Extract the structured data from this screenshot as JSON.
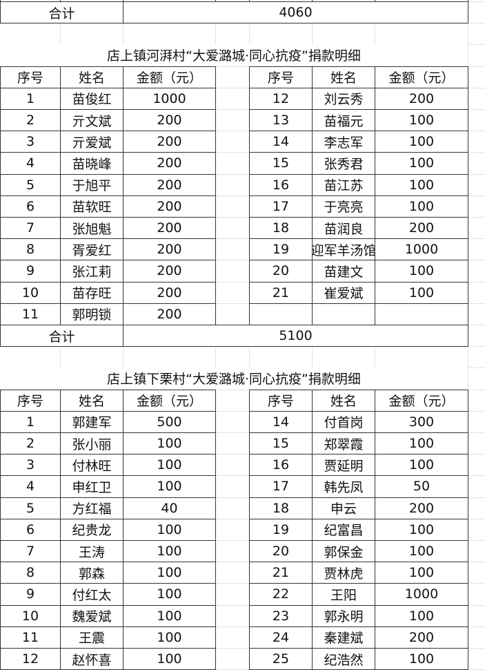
{
  "top_total": {
    "label": "合计",
    "value": "4060"
  },
  "sections": [
    {
      "title": "店上镇河湃村“大爱潞城·同心抗疫”捐款明细",
      "headers": [
        "序号",
        "姓名",
        "金额（元）"
      ],
      "left": [
        [
          "1",
          "苗俊红",
          "1000"
        ],
        [
          "2",
          "亓文斌",
          "200"
        ],
        [
          "3",
          "亓爱斌",
          "200"
        ],
        [
          "4",
          "苗晓峰",
          "200"
        ],
        [
          "5",
          "于旭平",
          "200"
        ],
        [
          "6",
          "苗软旺",
          "200"
        ],
        [
          "7",
          "张旭魁",
          "200"
        ],
        [
          "8",
          "胥爱红",
          "200"
        ],
        [
          "9",
          "张江莉",
          "200"
        ],
        [
          "10",
          "苗存旺",
          "200"
        ],
        [
          "11",
          "郭明锁",
          "200"
        ]
      ],
      "right": [
        [
          "12",
          "刘云秀",
          "200"
        ],
        [
          "13",
          "苗福元",
          "100"
        ],
        [
          "14",
          "李志军",
          "100"
        ],
        [
          "15",
          "张秀君",
          "100"
        ],
        [
          "16",
          "苗江苏",
          "100"
        ],
        [
          "17",
          "于亮亮",
          "100"
        ],
        [
          "18",
          "苗润良",
          "200"
        ],
        [
          "19",
          "迎军羊汤馆",
          "1000"
        ],
        [
          "20",
          "苗建文",
          "100"
        ],
        [
          "21",
          "崔爱斌",
          "100"
        ],
        [
          "",
          "",
          ""
        ]
      ],
      "total": {
        "label": "合计",
        "value": "5100"
      }
    },
    {
      "title": "店上镇下栗村“大爱潞城·同心抗疫”捐款明细",
      "headers": [
        "序号",
        "姓名",
        "金额（元）"
      ],
      "left": [
        [
          "1",
          "郭建军",
          "500"
        ],
        [
          "2",
          "张小丽",
          "100"
        ],
        [
          "3",
          "付林旺",
          "100"
        ],
        [
          "4",
          "申红卫",
          "100"
        ],
        [
          "5",
          "方红福",
          "40"
        ],
        [
          "6",
          "纪贵龙",
          "100"
        ],
        [
          "7",
          "王涛",
          "100"
        ],
        [
          "8",
          "郭森",
          "100"
        ],
        [
          "9",
          "付红太",
          "100"
        ],
        [
          "10",
          "魏爱斌",
          "100"
        ],
        [
          "11",
          "王震",
          "100"
        ],
        [
          "12",
          "赵怀喜",
          "100"
        ]
      ],
      "right": [
        [
          "14",
          "付首岗",
          "300"
        ],
        [
          "15",
          "郑翠霞",
          "100"
        ],
        [
          "16",
          "贾延明",
          "100"
        ],
        [
          "17",
          "韩先凤",
          "50"
        ],
        [
          "18",
          "申云",
          "200"
        ],
        [
          "19",
          "纪富昌",
          "100"
        ],
        [
          "20",
          "郭保金",
          "100"
        ],
        [
          "21",
          "贾林虎",
          "100"
        ],
        [
          "22",
          "王阳",
          "1000"
        ],
        [
          "23",
          "郭永明",
          "100"
        ],
        [
          "24",
          "秦建斌",
          "200"
        ],
        [
          "25",
          "纪浩然",
          "100"
        ]
      ]
    }
  ]
}
